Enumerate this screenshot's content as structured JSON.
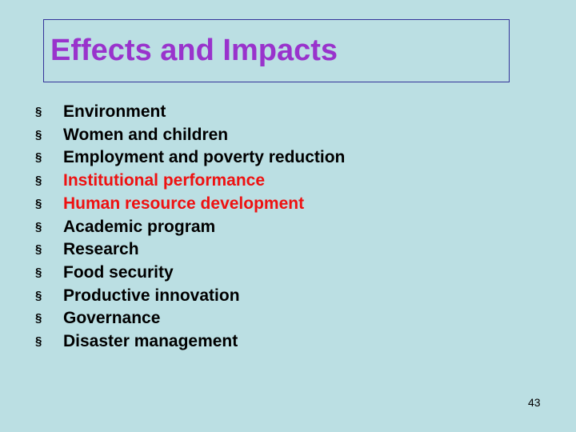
{
  "title": "Effects and Impacts",
  "bullet": "§",
  "items": [
    {
      "text": "Environment",
      "color": "#000000"
    },
    {
      "text": "Women and children",
      "color": "#000000"
    },
    {
      "text": "Employment and poverty reduction",
      "color": "#000000"
    },
    {
      "text": "Institutional performance",
      "color": "#ee1111"
    },
    {
      "text": "Human resource development",
      "color": "#ee1111"
    },
    {
      "text": "Academic program",
      "color": "#000000"
    },
    {
      "text": "Research",
      "color": "#000000"
    },
    {
      "text": "Food security",
      "color": "#000000"
    },
    {
      "text": "Productive innovation",
      "color": "#000000"
    },
    {
      "text": "Governance",
      "color": "#000000"
    },
    {
      "text": "Disaster management",
      "color": "#000000"
    }
  ],
  "page_number": "43"
}
